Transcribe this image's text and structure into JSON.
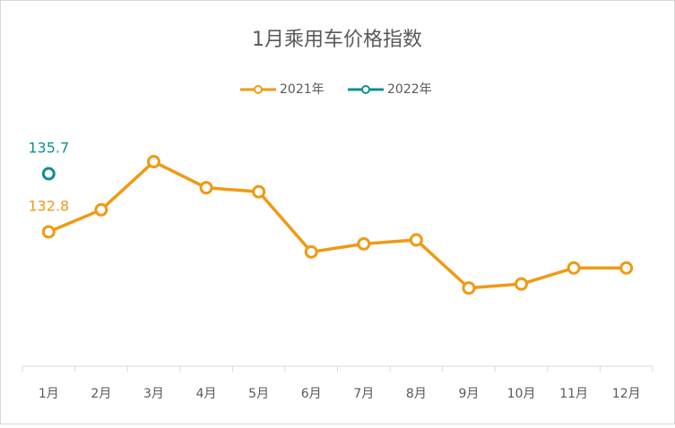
{
  "chart_data": {
    "type": "line",
    "title": "1月乘用车价格指数",
    "categories": [
      "1月",
      "2月",
      "3月",
      "4月",
      "5月",
      "6月",
      "7月",
      "8月",
      "9月",
      "10月",
      "11月",
      "12月"
    ],
    "series": [
      {
        "name": "2021年",
        "color": "#ef9a13",
        "values": [
          132.8,
          133.9,
          136.3,
          135.0,
          134.8,
          131.8,
          132.2,
          132.4,
          130.0,
          130.2,
          131.0,
          131.0
        ],
        "value_labels": [
          "132.8",
          null,
          null,
          null,
          null,
          null,
          null,
          null,
          null,
          null,
          null,
          null
        ]
      },
      {
        "name": "2022年",
        "color": "#118f8f",
        "values": [
          135.7,
          null,
          null,
          null,
          null,
          null,
          null,
          null,
          null,
          null,
          null,
          null
        ],
        "value_labels": [
          "135.7",
          null,
          null,
          null,
          null,
          null,
          null,
          null,
          null,
          null,
          null,
          null
        ]
      }
    ],
    "ylim": [
      126.1,
      138.2
    ],
    "legend": "top"
  }
}
